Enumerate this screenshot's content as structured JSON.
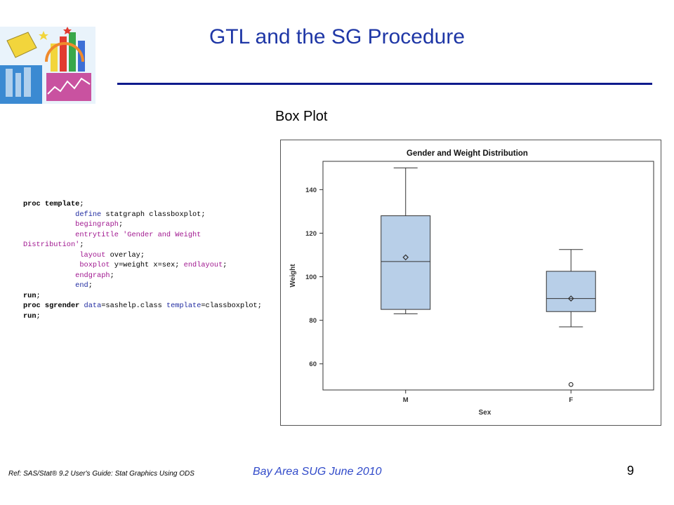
{
  "slide": {
    "title": "GTL and the SG Procedure",
    "subtitle": "Box Plot",
    "footer_ref": "Ref: SAS/Stat® 9.2 User's Guide: Stat Graphics Using ODS",
    "footer_center": "Bay Area SUG June 2010",
    "page_number": "9"
  },
  "code": {
    "lines": [
      [
        {
          "t": "proc template",
          "c": "bold"
        },
        {
          "t": ";",
          "c": ""
        }
      ],
      [
        {
          "t": "            ",
          "c": ""
        },
        {
          "t": "define",
          "c": "kw"
        },
        {
          "t": " statgraph classboxplot;",
          "c": ""
        }
      ],
      [
        {
          "t": "            ",
          "c": ""
        },
        {
          "t": "begingraph",
          "c": "mag"
        },
        {
          "t": ";",
          "c": ""
        }
      ],
      [
        {
          "t": "            ",
          "c": ""
        },
        {
          "t": "entrytitle",
          "c": "mag"
        },
        {
          "t": " 'Gender and Weight",
          "c": "mag"
        }
      ],
      [
        {
          "t": "Distribution'",
          "c": "mag"
        },
        {
          "t": ";",
          "c": ""
        }
      ],
      [
        {
          "t": "             ",
          "c": ""
        },
        {
          "t": "layout",
          "c": "mag"
        },
        {
          "t": " overlay;",
          "c": ""
        }
      ],
      [
        {
          "t": "             ",
          "c": ""
        },
        {
          "t": "boxplot",
          "c": "mag"
        },
        {
          "t": " y=weight x=sex; ",
          "c": ""
        },
        {
          "t": "endlayout",
          "c": "mag"
        },
        {
          "t": ";",
          "c": ""
        }
      ],
      [
        {
          "t": "            ",
          "c": ""
        },
        {
          "t": "endgraph",
          "c": "mag"
        },
        {
          "t": ";",
          "c": ""
        }
      ],
      [
        {
          "t": "            ",
          "c": ""
        },
        {
          "t": "end",
          "c": "kw"
        },
        {
          "t": ";",
          "c": ""
        }
      ],
      [
        {
          "t": "run",
          "c": "bold"
        },
        {
          "t": ";",
          "c": ""
        }
      ],
      [
        {
          "t": "proc sgrender",
          "c": "bold"
        },
        {
          "t": " ",
          "c": ""
        },
        {
          "t": "data",
          "c": "kw"
        },
        {
          "t": "=sashelp.class ",
          "c": ""
        },
        {
          "t": "template",
          "c": "kw"
        },
        {
          "t": "=classboxplot;",
          "c": ""
        }
      ],
      [
        {
          "t": "run",
          "c": "bold"
        },
        {
          "t": ";",
          "c": ""
        }
      ]
    ]
  },
  "logo": {
    "colors": [
      "#f2d53c",
      "#e23a2f",
      "#3d6fd6",
      "#38a84a",
      "#f08a2c",
      "#c2e2f4"
    ]
  },
  "chart_data": {
    "type": "box",
    "title": "Gender and Weight Distribution",
    "xlabel": "Sex",
    "ylabel": "Weight",
    "categories": [
      "M",
      "F"
    ],
    "ylim": [
      48,
      153
    ],
    "yticks": [
      60,
      80,
      100,
      120,
      140
    ],
    "boxes": [
      {
        "category": "M",
        "whisker_low": 83,
        "q1": 85,
        "median": 107,
        "mean": 108.9,
        "q3": 128,
        "whisker_high": 150,
        "outliers": []
      },
      {
        "category": "F",
        "whisker_low": 77,
        "q1": 84,
        "median": 90,
        "mean": 90,
        "q3": 102.5,
        "whisker_high": 112.5,
        "outliers": [
          50.5
        ]
      }
    ],
    "box_fill": "#b8cfe8",
    "box_stroke": "#333333",
    "grid": false
  }
}
